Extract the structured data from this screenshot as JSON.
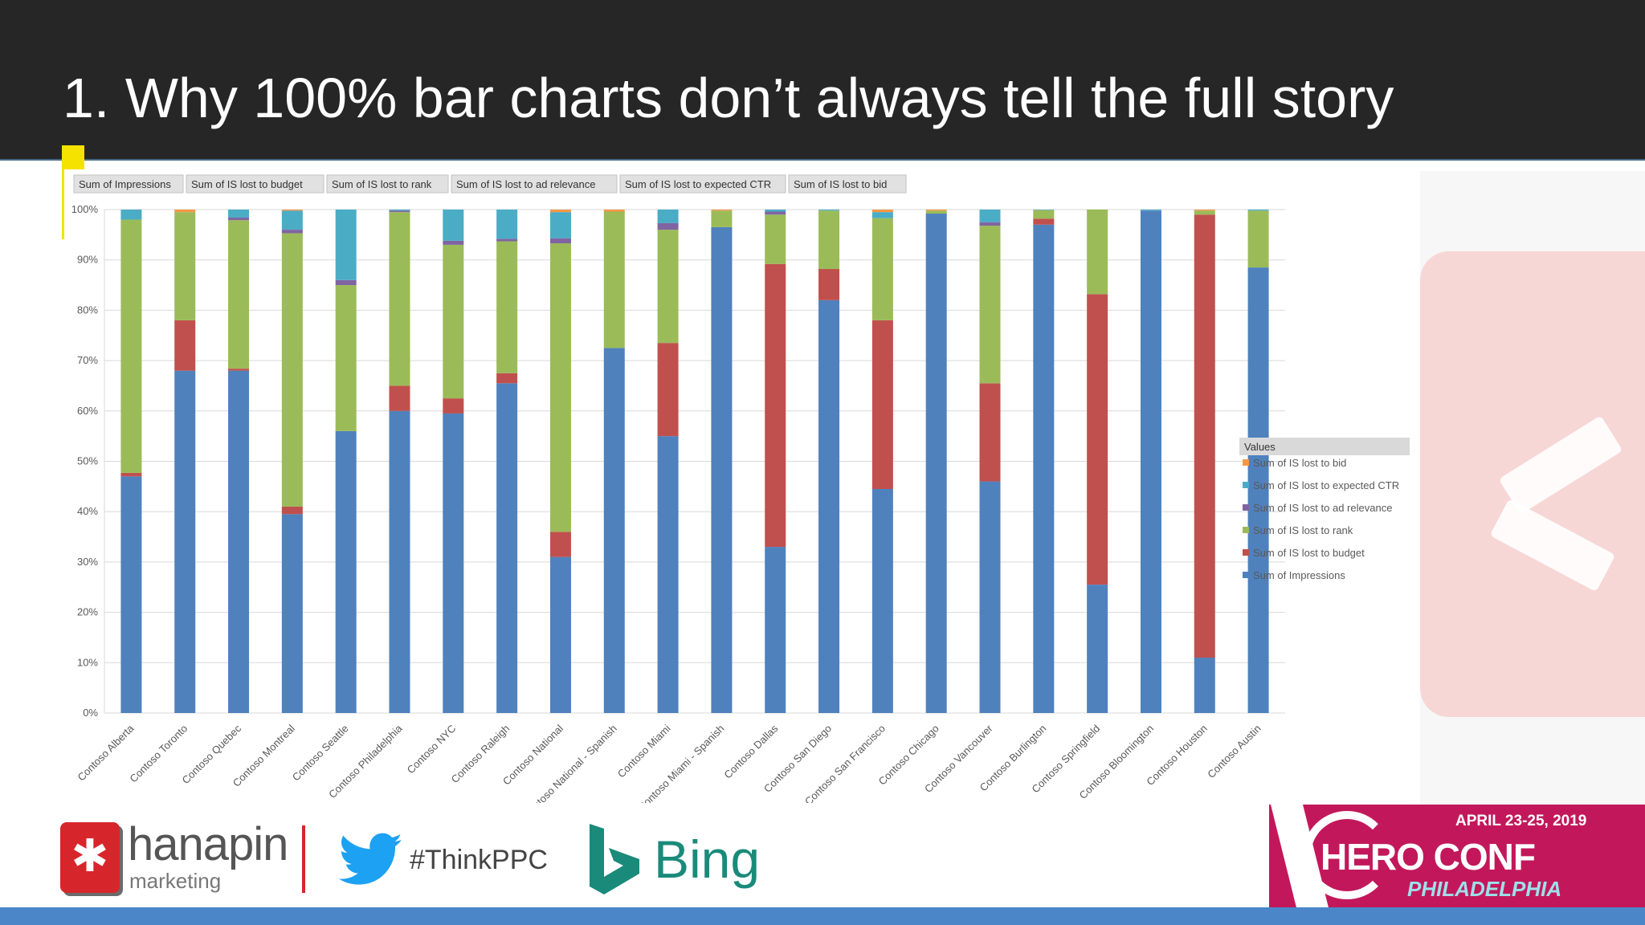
{
  "slide": {
    "title": "1. Why 100% bar charts don’t always tell the full story"
  },
  "footer": {
    "hanapin_name": "hanapin",
    "hanapin_sub": "marketing",
    "hashtag": "#ThinkPPC",
    "bing": "Bing",
    "heroconf_date": "APRIL 23-25, 2019",
    "heroconf_name": "HERO CONF",
    "heroconf_city": "PHILADELPHIA",
    "icons": [
      "hanapin-asterisk-icon",
      "twitter-bird-icon",
      "bing-logo-icon"
    ]
  },
  "colors": {
    "header_bg": "#262626",
    "impressions": "#4f81bd",
    "budget": "#c0504d",
    "rank": "#9bbb59",
    "ad_relevance": "#8064a2",
    "expected_ctr": "#4bacc6",
    "bid": "#f79646",
    "accent_pink": "#c2185b",
    "bing_teal": "#1a8a7a"
  },
  "chart_data": {
    "type": "bar",
    "stacked": "100%",
    "field_buttons": [
      "Sum of Impressions",
      "Sum of IS lost to budget",
      "Sum of IS lost to rank",
      "Sum of IS lost to ad relevance",
      "Sum of IS lost to expected CTR",
      "Sum of IS lost to bid"
    ],
    "legend_title": "Values",
    "legend_position": "right",
    "legend_order": [
      "bid",
      "expected_ctr",
      "ad_relevance",
      "rank",
      "budget",
      "impressions"
    ],
    "ylim": [
      0,
      100
    ],
    "yticks": [
      "0%",
      "10%",
      "20%",
      "30%",
      "40%",
      "50%",
      "60%",
      "70%",
      "80%",
      "90%",
      "100%"
    ],
    "grid": true,
    "categories": [
      "Contoso Alberta",
      "Contoso Toronto",
      "Contoso Quebec",
      "Contoso Montreal",
      "Contoso Seattle",
      "Contoso Philadelphia",
      "Contoso NYC",
      "Contoso Raleigh",
      "Contoso National",
      "Contoso National - Spanish",
      "Contoso Miami",
      "Contoso Miami - Spanish",
      "Contoso Dallas",
      "Contoso San Diego",
      "Contoso San Francisco",
      "Contoso Chicago",
      "Contoso Vancouver",
      "Contoso Burlington",
      "Contoso Springfield",
      "Contoso Bloomington",
      "Contoso Houston",
      "Contoso Austin"
    ],
    "series": [
      {
        "key": "impressions",
        "name": "Sum of Impressions",
        "values": [
          47,
          68,
          68,
          39.5,
          56,
          60,
          59.5,
          65.5,
          31,
          72.5,
          55,
          96.5,
          33,
          82,
          44.5,
          99.2,
          46,
          97,
          25.5,
          99.8,
          11,
          88.5
        ]
      },
      {
        "key": "budget",
        "name": "Sum of IS lost to budget",
        "values": [
          0.7,
          10,
          0.4,
          1.5,
          0,
          5,
          3,
          2,
          5,
          0,
          18.5,
          0,
          56.2,
          6.2,
          33.5,
          0,
          19.5,
          1.2,
          57.7,
          0,
          88,
          0
        ]
      },
      {
        "key": "rank",
        "name": "Sum of IS lost to rank",
        "values": [
          50.3,
          21.5,
          29.5,
          54.3,
          29,
          34.5,
          30.5,
          26.2,
          57.3,
          27.1,
          22.5,
          3.3,
          9.8,
          11.6,
          20.3,
          0.6,
          31.3,
          1.7,
          16.8,
          0,
          0.8,
          11.3
        ]
      },
      {
        "key": "ad_relevance",
        "name": "Sum of IS lost to ad relevance",
        "values": [
          0,
          0,
          0.5,
          0.7,
          1,
          0.3,
          0.8,
          0.5,
          1,
          0,
          1.3,
          0,
          0.6,
          0,
          0,
          0,
          0.7,
          0,
          0,
          0,
          0,
          0
        ]
      },
      {
        "key": "expected_ctr",
        "name": "Sum of IS lost to expected CTR",
        "values": [
          2,
          0,
          1.6,
          3.8,
          14,
          0.2,
          6.2,
          5.8,
          5.2,
          0,
          2.7,
          0,
          0.4,
          0.2,
          1.2,
          0,
          2.5,
          0.1,
          0,
          0.2,
          0,
          0.2
        ]
      },
      {
        "key": "bid",
        "name": "Sum of IS lost to bid",
        "values": [
          0,
          0.5,
          0,
          0.2,
          0,
          0,
          0,
          0,
          0.5,
          0.4,
          0,
          0.2,
          0,
          0,
          0.5,
          0.2,
          0,
          0,
          0,
          0,
          0.2,
          0
        ]
      }
    ]
  }
}
